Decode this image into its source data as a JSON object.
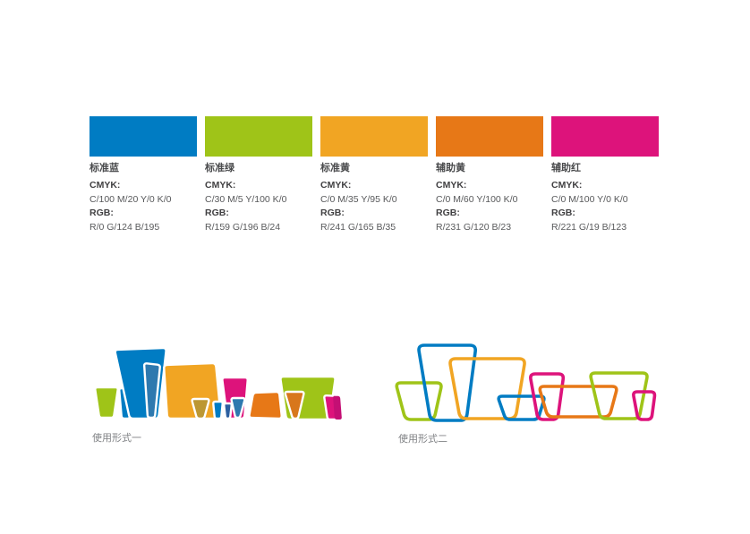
{
  "colors": {
    "blue": "#007CC3",
    "green": "#9FC418",
    "yellow": "#F1A523",
    "orange": "#E77817",
    "magenta": "#DD137B",
    "darkblue": "#2E79AF",
    "navy": "#2B5FA0",
    "olive": "#BC9733",
    "darkorange": "#D8771C",
    "darkmagenta": "#C40F74"
  },
  "palette": {
    "columns": [
      {
        "name": "标准蓝",
        "hex": "#007CC3",
        "cmyk_label": "CMYK:",
        "cmyk": "C/100  M/20  Y/0  K/0",
        "rgb_label": "RGB:",
        "rgb": "R/0  G/124  B/195"
      },
      {
        "name": "标准绿",
        "hex": "#9FC418",
        "cmyk_label": "CMYK:",
        "cmyk": "C/30  M/5  Y/100  K/0",
        "rgb_label": "RGB:",
        "rgb": "R/159  G/196  B/24"
      },
      {
        "name": "标准黄",
        "hex": "#F1A523",
        "cmyk_label": "CMYK:",
        "cmyk": "C/0  M/35  Y/95  K/0",
        "rgb_label": "RGB:",
        "rgb": "R/241  G/165  B/35"
      },
      {
        "name": "辅助黄",
        "hex": "#E77817",
        "cmyk_label": "CMYK:",
        "cmyk": "C/0  M/60  Y/100  K/0",
        "rgb_label": "RGB:",
        "rgb": "R/231  G/120  B/23"
      },
      {
        "name": "辅助红",
        "hex": "#DD137B",
        "cmyk_label": "CMYK:",
        "cmyk": "C/0  M/100  Y/0  K/0",
        "rgb_label": "RGB:",
        "rgb": "R/221  G/19  B/123"
      }
    ]
  },
  "usage": {
    "form1_label": "使用形式一",
    "form2_label": "使用形式二"
  }
}
